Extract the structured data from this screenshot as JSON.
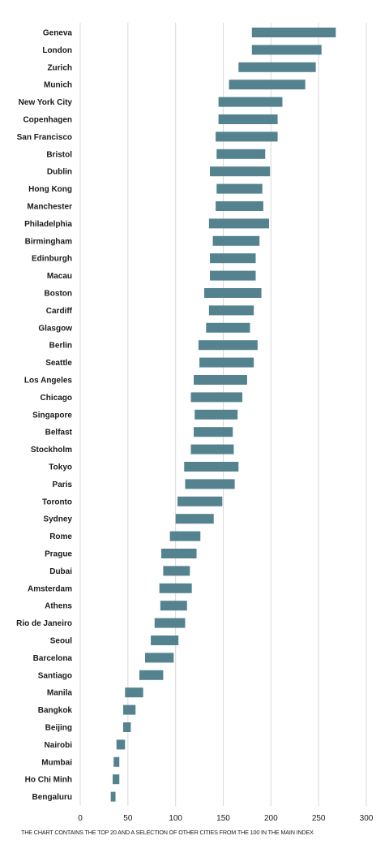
{
  "colors": {
    "bar": "#54838f",
    "grid": "#d9d9d9",
    "text": "#1a1a1a"
  },
  "footnote": "THE CHART CONTAINS THE TOP 20 AND A SELECTION OF OTHER CITIES FROM THE 100 IN THE MAIN INDEX",
  "chart_data": {
    "type": "bar",
    "orientation": "horizontal",
    "bar_style": "floating-range",
    "xlim": [
      0,
      300
    ],
    "x_ticks": [
      0,
      50,
      100,
      150,
      200,
      250,
      300
    ],
    "grid": "vertical",
    "categories": [
      "Geneva",
      "London",
      "Zurich",
      "Munich",
      "New York City",
      "Copenhagen",
      "San Francisco",
      "Bristol",
      "Dublin",
      "Hong Kong",
      "Manchester",
      "Philadelphia",
      "Birmingham",
      "Edinburgh",
      "Macau",
      "Boston",
      "Cardiff",
      "Glasgow",
      "Berlin",
      "Seattle",
      "Los Angeles",
      "Chicago",
      "Singapore",
      "Belfast",
      "Stockholm",
      "Tokyo",
      "Paris",
      "Toronto",
      "Sydney",
      "Rome",
      "Prague",
      "Dubai",
      "Amsterdam",
      "Athens",
      "Rio de Janeiro",
      "Seoul",
      "Barcelona",
      "Santiago",
      "Manila",
      "Bangkok",
      "Beijing",
      "Nairobi",
      "Mumbai",
      "Ho Chi Minh",
      "Bengaluru"
    ],
    "ranges": [
      [
        180,
        268
      ],
      [
        180,
        253
      ],
      [
        166,
        247
      ],
      [
        156,
        236
      ],
      [
        145,
        212
      ],
      [
        145,
        207
      ],
      [
        142,
        207
      ],
      [
        143,
        194
      ],
      [
        136,
        199
      ],
      [
        143,
        191
      ],
      [
        142,
        192
      ],
      [
        135,
        198
      ],
      [
        139,
        188
      ],
      [
        136,
        184
      ],
      [
        136,
        184
      ],
      [
        130,
        190
      ],
      [
        135,
        182
      ],
      [
        132,
        178
      ],
      [
        124,
        186
      ],
      [
        125,
        182
      ],
      [
        119,
        175
      ],
      [
        116,
        170
      ],
      [
        120,
        165
      ],
      [
        119,
        160
      ],
      [
        116,
        161
      ],
      [
        109,
        166
      ],
      [
        110,
        162
      ],
      [
        102,
        149
      ],
      [
        100,
        140
      ],
      [
        94,
        126
      ],
      [
        85,
        122
      ],
      [
        87,
        115
      ],
      [
        83,
        117
      ],
      [
        84,
        112
      ],
      [
        78,
        110
      ],
      [
        74,
        103
      ],
      [
        68,
        98
      ],
      [
        62,
        87
      ],
      [
        47,
        66
      ],
      [
        45,
        58
      ],
      [
        45,
        53
      ],
      [
        38,
        47
      ],
      [
        35,
        41
      ],
      [
        34,
        41
      ],
      [
        32,
        37
      ]
    ]
  }
}
